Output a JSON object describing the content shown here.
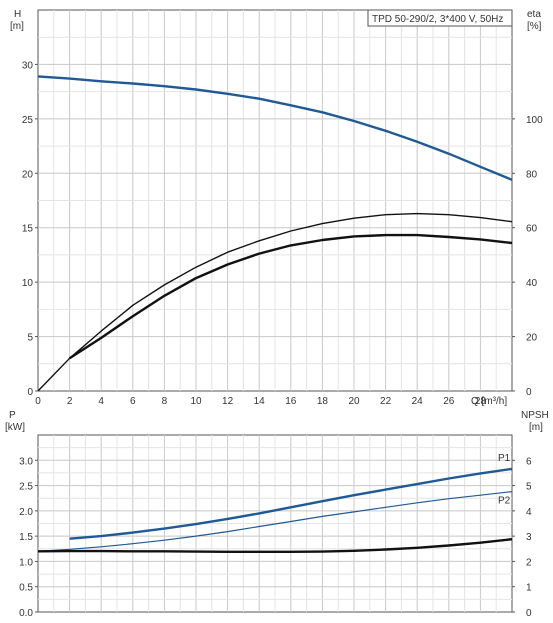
{
  "chart_data": [
    {
      "type": "line",
      "title": "TPD 50-290/2, 3*400 V, 50Hz",
      "xlabel": "Q [m³/h]",
      "xlim": [
        0,
        30
      ],
      "x_ticks": [
        "0",
        "2",
        "4",
        "6",
        "8",
        "10",
        "12",
        "14",
        "16",
        "18",
        "20",
        "22",
        "24",
        "26",
        "28"
      ],
      "y_left": {
        "label_line1": "H",
        "label_line2": "[m]",
        "ylim": [
          0,
          35
        ],
        "ticks": [
          "0",
          "5",
          "10",
          "15",
          "20",
          "25",
          "30"
        ]
      },
      "y_right": {
        "label_line1": "eta",
        "label_line2": "[%]",
        "ylim": [
          0,
          140
        ],
        "ticks": [
          "0",
          "20",
          "40",
          "60",
          "80",
          "100"
        ]
      },
      "grid": true,
      "series": [
        {
          "axis": "left",
          "color": "#1f5a96",
          "x": [
            0,
            2,
            4,
            6,
            8,
            10,
            12,
            14,
            16,
            18,
            20,
            22,
            24,
            26,
            28,
            30
          ],
          "y": [
            28.9,
            28.7,
            28.45,
            28.25,
            28.0,
            27.7,
            27.3,
            26.85,
            26.25,
            25.6,
            24.8,
            23.9,
            22.9,
            21.8,
            20.6,
            19.4
          ]
        },
        {
          "axis": "right",
          "color": "#111111",
          "x": [
            0,
            2,
            4,
            6,
            8,
            10,
            12,
            14,
            16,
            18,
            20,
            22,
            24,
            26,
            28,
            30
          ],
          "y": [
            0,
            12,
            22,
            31.5,
            39,
            45.5,
            51,
            55.2,
            58.8,
            61.5,
            63.5,
            64.8,
            65.2,
            64.8,
            63.7,
            62.2
          ]
        },
        {
          "axis": "right",
          "color": "#111111",
          "x": [
            2,
            4,
            6,
            8,
            10,
            12,
            14,
            16,
            18,
            20,
            22,
            24,
            26,
            28,
            30
          ],
          "y": [
            12,
            19.5,
            27.5,
            35,
            41.5,
            46.5,
            50.5,
            53.5,
            55.5,
            56.8,
            57.3,
            57.3,
            56.6,
            55.7,
            54.4
          ]
        }
      ]
    },
    {
      "type": "line",
      "xlim": [
        0,
        30
      ],
      "y_left": {
        "label_line1": "P",
        "label_line2": "[kW]",
        "ylim": [
          0,
          3.5
        ],
        "ticks": [
          "0.0",
          "0.5",
          "1.0",
          "1.5",
          "2.0",
          "2.5",
          "3.0"
        ]
      },
      "y_right": {
        "label_line1": "NPSH",
        "label_line2": "[m]",
        "ylim": [
          0,
          7
        ],
        "ticks": [
          "0",
          "1",
          "2",
          "3",
          "4",
          "5",
          "6"
        ]
      },
      "grid": true,
      "series": [
        {
          "name": "P1",
          "axis": "left",
          "color": "#1f5a96",
          "x": [
            2,
            4,
            6,
            8,
            10,
            12,
            14,
            16,
            18,
            20,
            22,
            24,
            26,
            28,
            30
          ],
          "y": [
            1.45,
            1.5,
            1.57,
            1.65,
            1.74,
            1.84,
            1.95,
            2.07,
            2.19,
            2.31,
            2.42,
            2.53,
            2.64,
            2.74,
            2.83
          ]
        },
        {
          "name": "P2",
          "axis": "left",
          "color": "#1f5a96",
          "x": [
            0,
            2,
            4,
            6,
            8,
            10,
            12,
            14,
            16,
            18,
            20,
            22,
            24,
            26,
            28,
            30
          ],
          "y": [
            1.2,
            1.24,
            1.29,
            1.35,
            1.42,
            1.5,
            1.59,
            1.69,
            1.79,
            1.89,
            1.98,
            2.07,
            2.16,
            2.24,
            2.31,
            2.38
          ]
        },
        {
          "axis": "right",
          "color": "#111111",
          "x": [
            0,
            2,
            4,
            6,
            8,
            10,
            12,
            14,
            16,
            18,
            20,
            22,
            24,
            26,
            28,
            30
          ],
          "y": [
            2.4,
            2.41,
            2.41,
            2.4,
            2.4,
            2.39,
            2.38,
            2.38,
            2.38,
            2.39,
            2.42,
            2.47,
            2.54,
            2.63,
            2.74,
            2.88
          ]
        }
      ]
    }
  ]
}
